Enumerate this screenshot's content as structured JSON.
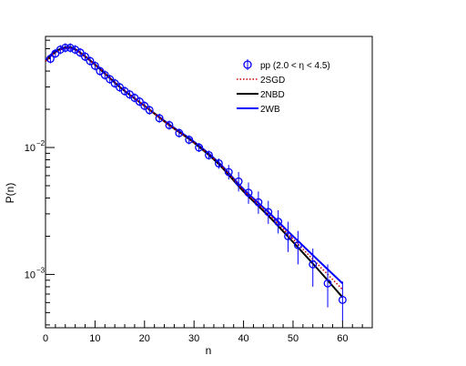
{
  "chart_data": {
    "type": "scatter",
    "title": "",
    "xlabel": "n",
    "ylabel": "P(n)",
    "xlim": [
      0,
      66
    ],
    "ylim": [
      0.00038,
      0.075
    ],
    "yscale": "log",
    "grid": false,
    "legend_position": "top-right",
    "x_ticks": [
      0,
      10,
      20,
      30,
      40,
      50,
      60
    ],
    "y_ticks": [
      {
        "value": 0.01,
        "base": "10",
        "exp": "−2"
      },
      {
        "value": 0.001,
        "base": "10",
        "exp": "−3"
      }
    ],
    "colors": {
      "data": "#0000ff",
      "sgd": "#cc0000",
      "nbd": "#000000",
      "wb": "#0000ff"
    },
    "series": [
      {
        "name": "pp (2.0 < η < 4.5)",
        "kind": "points",
        "x": [
          1,
          2,
          3,
          4,
          5,
          6,
          7,
          8,
          9,
          10,
          11,
          12,
          13,
          14,
          15,
          16,
          17,
          18,
          19,
          20,
          21,
          23,
          25,
          27,
          29,
          31,
          33,
          35,
          37,
          39,
          41,
          43,
          45,
          47,
          49,
          51,
          54,
          57,
          60
        ],
        "y": [
          0.05,
          0.055,
          0.059,
          0.061,
          0.061,
          0.059,
          0.056,
          0.052,
          0.048,
          0.044,
          0.04,
          0.0372,
          0.0345,
          0.032,
          0.0298,
          0.0278,
          0.0262,
          0.0246,
          0.023,
          0.0213,
          0.0197,
          0.017,
          0.015,
          0.013,
          0.0115,
          0.01,
          0.0087,
          0.0075,
          0.0064,
          0.0054,
          0.0044,
          0.0037,
          0.0031,
          0.0026,
          0.002,
          0.0017,
          0.0012,
          0.00085,
          0.00063
        ],
        "yerr_high": [
          0,
          0,
          0,
          0,
          0,
          0,
          0,
          0,
          0,
          0,
          0,
          0,
          0,
          0,
          0,
          0,
          0,
          0,
          0,
          0,
          0,
          0,
          0,
          0,
          0,
          0,
          0,
          0.0007,
          0.0009,
          0.001,
          0.0009,
          0.0008,
          0.0007,
          0.0006,
          0.0006,
          0.0005,
          0.0004,
          0.00035,
          0.00025
        ],
        "yerr_low": [
          0,
          0,
          0,
          0,
          0,
          0,
          0,
          0,
          0,
          0,
          0,
          0,
          0,
          0,
          0,
          0,
          0,
          0,
          0,
          0,
          0,
          0,
          0,
          0,
          0,
          0,
          0,
          0.0007,
          0.0008,
          0.0009,
          0.0008,
          0.0007,
          0.0006,
          0.0005,
          0.0005,
          0.0005,
          0.0004,
          0.0003,
          0.0002
        ]
      },
      {
        "name": "2SGD",
        "kind": "line",
        "style": "dotted",
        "x": [
          0,
          2,
          4,
          6,
          10,
          15,
          20,
          25,
          30,
          35,
          40,
          45,
          50,
          55,
          60
        ],
        "y": [
          0.048,
          0.056,
          0.0605,
          0.059,
          0.045,
          0.03,
          0.0213,
          0.015,
          0.0109,
          0.0075,
          0.0046,
          0.003,
          0.0019,
          0.0012,
          0.00076
        ]
      },
      {
        "name": "2NBD",
        "kind": "line",
        "style": "solid",
        "x": [
          0,
          2,
          4,
          6,
          10,
          15,
          20,
          25,
          30,
          35,
          40,
          45,
          50,
          55,
          60
        ],
        "y": [
          0.048,
          0.0565,
          0.0615,
          0.0595,
          0.045,
          0.03,
          0.0213,
          0.015,
          0.0109,
          0.0074,
          0.0045,
          0.0029,
          0.0018,
          0.0011,
          0.00066
        ]
      },
      {
        "name": "2WB",
        "kind": "line",
        "style": "solid",
        "x": [
          0,
          2,
          4,
          6,
          10,
          15,
          20,
          25,
          30,
          35,
          40,
          45,
          50,
          55,
          60
        ],
        "y": [
          0.049,
          0.0575,
          0.0605,
          0.059,
          0.045,
          0.03,
          0.0213,
          0.0152,
          0.0111,
          0.0076,
          0.0047,
          0.0031,
          0.002,
          0.0013,
          0.00085
        ]
      }
    ]
  }
}
